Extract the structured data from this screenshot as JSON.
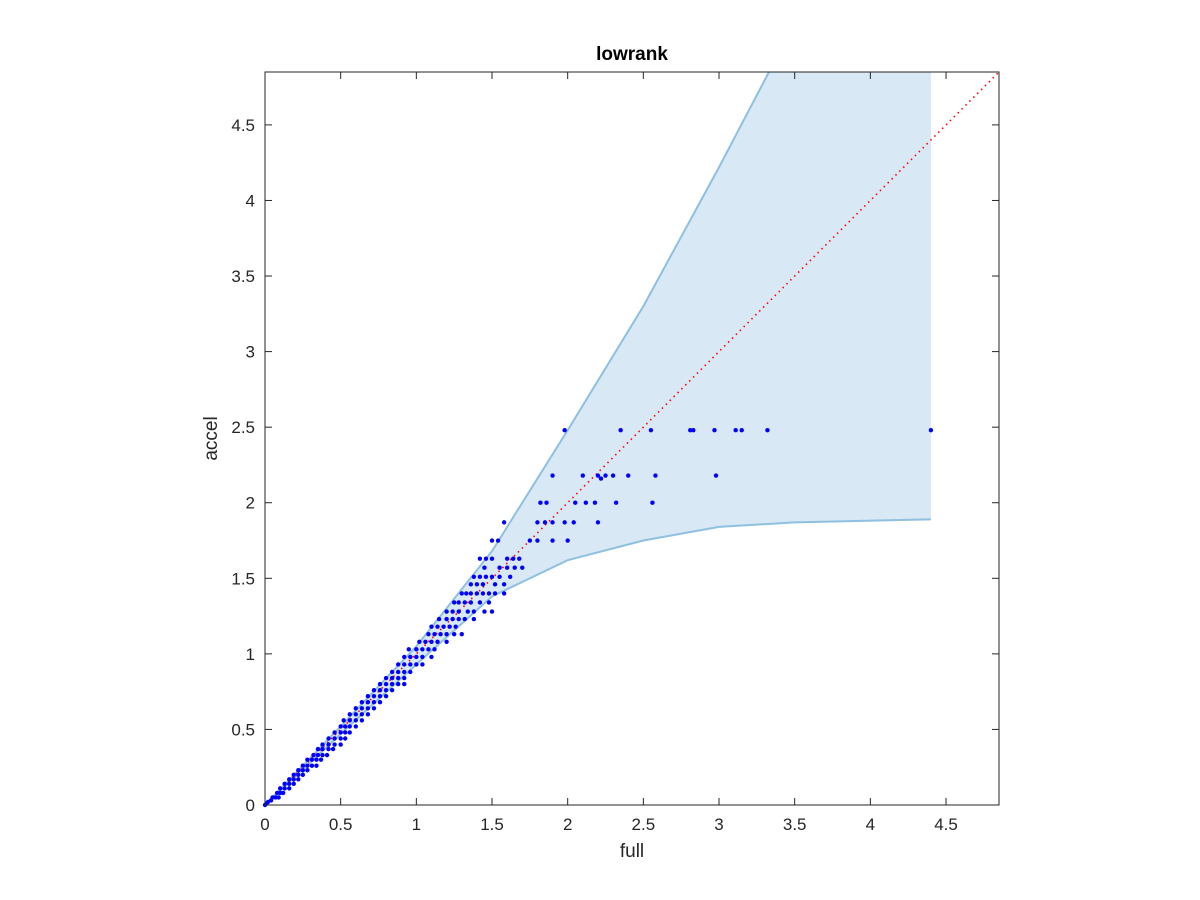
{
  "chart_data": {
    "type": "scatter",
    "title": "lowrank",
    "xlabel": "full",
    "ylabel": "accel",
    "xlim": [
      0,
      4.85
    ],
    "ylim": [
      0,
      4.85
    ],
    "xticks": [
      "0",
      "0.5",
      "1",
      "1.5",
      "2",
      "2.5",
      "3",
      "3.5",
      "4",
      "4.5"
    ],
    "yticks": [
      "0",
      "0.5",
      "1",
      "1.5",
      "2",
      "2.5",
      "3",
      "3.5",
      "4",
      "4.5"
    ],
    "grid": false,
    "legend": "none",
    "reference_line": {
      "style": "dotted",
      "color": "#ff0000",
      "x": [
        0,
        4.85
      ],
      "y": [
        0,
        4.85
      ]
    },
    "band": {
      "color": "#d8e8f4",
      "edge_color": "#8fc0e0",
      "upper": [
        [
          0,
          0
        ],
        [
          0.5,
          0.52
        ],
        [
          1,
          1.05
        ],
        [
          1.5,
          1.68
        ],
        [
          2,
          2.48
        ],
        [
          2.5,
          3.3
        ],
        [
          3,
          4.22
        ],
        [
          3.33,
          4.85
        ]
      ],
      "upper_end_x": 4.4,
      "lower": [
        [
          0,
          0
        ],
        [
          0.5,
          0.47
        ],
        [
          1,
          0.93
        ],
        [
          1.5,
          1.38
        ],
        [
          2,
          1.62
        ],
        [
          2.5,
          1.75
        ],
        [
          3,
          1.84
        ],
        [
          3.5,
          1.87
        ],
        [
          4.4,
          1.89
        ]
      ],
      "x_max": 4.4
    },
    "series": [
      {
        "color": "#0000ff",
        "points": [
          [
            1.98,
            2.48
          ],
          [
            2.35,
            2.48
          ],
          [
            2.55,
            2.48
          ],
          [
            2.81,
            2.48
          ],
          [
            2.83,
            2.48
          ],
          [
            2.97,
            2.48
          ],
          [
            3.11,
            2.48
          ],
          [
            3.15,
            2.48
          ],
          [
            3.32,
            2.48
          ],
          [
            4.4,
            2.48
          ],
          [
            1.9,
            2.18
          ],
          [
            2.1,
            2.18
          ],
          [
            2.2,
            2.18
          ],
          [
            2.25,
            2.18
          ],
          [
            2.3,
            2.18
          ],
          [
            2.4,
            2.18
          ],
          [
            2.58,
            2.18
          ],
          [
            2.98,
            2.18
          ],
          [
            2.22,
            2.16
          ],
          [
            1.82,
            2.0
          ],
          [
            1.86,
            2.0
          ],
          [
            2.05,
            2.0
          ],
          [
            2.12,
            2.0
          ],
          [
            2.18,
            2.0
          ],
          [
            2.32,
            2.0
          ],
          [
            2.56,
            2.0
          ],
          [
            1.8,
            1.87
          ],
          [
            1.85,
            1.87
          ],
          [
            1.9,
            1.87
          ],
          [
            1.98,
            1.87
          ],
          [
            2.04,
            1.87
          ],
          [
            2.2,
            1.87
          ],
          [
            1.58,
            1.87
          ],
          [
            1.75,
            1.75
          ],
          [
            1.8,
            1.75
          ],
          [
            1.9,
            1.75
          ],
          [
            2.0,
            1.75
          ],
          [
            1.5,
            1.75
          ],
          [
            1.54,
            1.75
          ],
          [
            1.6,
            1.63
          ],
          [
            1.64,
            1.63
          ],
          [
            1.68,
            1.63
          ],
          [
            1.42,
            1.63
          ],
          [
            1.46,
            1.63
          ],
          [
            1.5,
            1.63
          ],
          [
            1.55,
            1.57
          ],
          [
            1.6,
            1.57
          ],
          [
            1.65,
            1.57
          ],
          [
            1.7,
            1.57
          ],
          [
            1.45,
            1.57
          ],
          [
            1.38,
            1.51
          ],
          [
            1.42,
            1.51
          ],
          [
            1.46,
            1.51
          ],
          [
            1.5,
            1.51
          ],
          [
            1.55,
            1.51
          ],
          [
            1.62,
            1.51
          ],
          [
            1.36,
            1.46
          ],
          [
            1.4,
            1.46
          ],
          [
            1.44,
            1.46
          ],
          [
            1.52,
            1.46
          ],
          [
            1.58,
            1.46
          ],
          [
            1.3,
            1.4
          ],
          [
            1.33,
            1.4
          ],
          [
            1.36,
            1.4
          ],
          [
            1.4,
            1.4
          ],
          [
            1.44,
            1.4
          ],
          [
            1.48,
            1.4
          ],
          [
            1.52,
            1.4
          ],
          [
            1.58,
            1.4
          ],
          [
            1.25,
            1.34
          ],
          [
            1.28,
            1.34
          ],
          [
            1.32,
            1.34
          ],
          [
            1.36,
            1.34
          ],
          [
            1.42,
            1.34
          ],
          [
            1.48,
            1.34
          ],
          [
            1.2,
            1.28
          ],
          [
            1.24,
            1.28
          ],
          [
            1.28,
            1.28
          ],
          [
            1.34,
            1.28
          ],
          [
            1.38,
            1.28
          ],
          [
            1.45,
            1.28
          ],
          [
            1.5,
            1.28
          ],
          [
            1.15,
            1.23
          ],
          [
            1.2,
            1.23
          ],
          [
            1.24,
            1.23
          ],
          [
            1.28,
            1.23
          ],
          [
            1.32,
            1.23
          ],
          [
            1.38,
            1.23
          ],
          [
            1.1,
            1.18
          ],
          [
            1.14,
            1.18
          ],
          [
            1.18,
            1.18
          ],
          [
            1.22,
            1.18
          ],
          [
            1.26,
            1.18
          ],
          [
            1.08,
            1.13
          ],
          [
            1.12,
            1.13
          ],
          [
            1.16,
            1.13
          ],
          [
            1.2,
            1.13
          ],
          [
            1.25,
            1.13
          ],
          [
            1.3,
            1.13
          ],
          [
            1.02,
            1.08
          ],
          [
            1.06,
            1.08
          ],
          [
            1.1,
            1.08
          ],
          [
            1.14,
            1.08
          ],
          [
            1.2,
            1.08
          ],
          [
            0.95,
            1.03
          ],
          [
            1.0,
            1.03
          ],
          [
            1.04,
            1.03
          ],
          [
            1.08,
            1.03
          ],
          [
            1.12,
            1.03
          ],
          [
            0.92,
            0.98
          ],
          [
            0.96,
            0.98
          ],
          [
            1.0,
            0.98
          ],
          [
            1.04,
            0.98
          ],
          [
            1.1,
            0.98
          ],
          [
            0.88,
            0.93
          ],
          [
            0.92,
            0.93
          ],
          [
            0.96,
            0.93
          ],
          [
            1.0,
            0.93
          ],
          [
            1.04,
            0.93
          ],
          [
            0.84,
            0.88
          ],
          [
            0.88,
            0.88
          ],
          [
            0.92,
            0.88
          ],
          [
            0.96,
            0.88
          ],
          [
            0.8,
            0.84
          ],
          [
            0.84,
            0.84
          ],
          [
            0.88,
            0.84
          ],
          [
            0.92,
            0.84
          ],
          [
            0.76,
            0.8
          ],
          [
            0.8,
            0.8
          ],
          [
            0.84,
            0.8
          ],
          [
            0.88,
            0.8
          ],
          [
            0.92,
            0.8
          ],
          [
            0.72,
            0.76
          ],
          [
            0.76,
            0.76
          ],
          [
            0.8,
            0.76
          ],
          [
            0.84,
            0.76
          ],
          [
            0.68,
            0.72
          ],
          [
            0.72,
            0.72
          ],
          [
            0.76,
            0.72
          ],
          [
            0.8,
            0.72
          ],
          [
            0.64,
            0.68
          ],
          [
            0.68,
            0.68
          ],
          [
            0.72,
            0.68
          ],
          [
            0.76,
            0.68
          ],
          [
            0.6,
            0.64
          ],
          [
            0.64,
            0.64
          ],
          [
            0.68,
            0.64
          ],
          [
            0.72,
            0.64
          ],
          [
            0.56,
            0.6
          ],
          [
            0.6,
            0.6
          ],
          [
            0.64,
            0.6
          ],
          [
            0.68,
            0.6
          ],
          [
            0.52,
            0.56
          ],
          [
            0.56,
            0.56
          ],
          [
            0.6,
            0.56
          ],
          [
            0.64,
            0.56
          ],
          [
            0.5,
            0.52
          ],
          [
            0.53,
            0.52
          ],
          [
            0.56,
            0.52
          ],
          [
            0.6,
            0.52
          ],
          [
            0.46,
            0.48
          ],
          [
            0.5,
            0.48
          ],
          [
            0.53,
            0.48
          ],
          [
            0.56,
            0.48
          ],
          [
            0.42,
            0.44
          ],
          [
            0.46,
            0.44
          ],
          [
            0.5,
            0.44
          ],
          [
            0.53,
            0.44
          ],
          [
            0.38,
            0.4
          ],
          [
            0.42,
            0.4
          ],
          [
            0.46,
            0.4
          ],
          [
            0.5,
            0.4
          ],
          [
            0.35,
            0.37
          ],
          [
            0.38,
            0.37
          ],
          [
            0.42,
            0.37
          ],
          [
            0.45,
            0.37
          ],
          [
            0.32,
            0.33
          ],
          [
            0.35,
            0.33
          ],
          [
            0.38,
            0.33
          ],
          [
            0.41,
            0.33
          ],
          [
            0.28,
            0.3
          ],
          [
            0.31,
            0.3
          ],
          [
            0.34,
            0.3
          ],
          [
            0.37,
            0.3
          ],
          [
            0.25,
            0.26
          ],
          [
            0.28,
            0.26
          ],
          [
            0.31,
            0.26
          ],
          [
            0.34,
            0.26
          ],
          [
            0.22,
            0.23
          ],
          [
            0.25,
            0.23
          ],
          [
            0.28,
            0.23
          ],
          [
            0.19,
            0.2
          ],
          [
            0.22,
            0.2
          ],
          [
            0.25,
            0.2
          ],
          [
            0.16,
            0.17
          ],
          [
            0.19,
            0.17
          ],
          [
            0.22,
            0.17
          ],
          [
            0.13,
            0.14
          ],
          [
            0.16,
            0.14
          ],
          [
            0.19,
            0.14
          ],
          [
            0.1,
            0.11
          ],
          [
            0.13,
            0.11
          ],
          [
            0.16,
            0.11
          ],
          [
            0.08,
            0.08
          ],
          [
            0.1,
            0.08
          ],
          [
            0.12,
            0.08
          ],
          [
            0.05,
            0.05
          ],
          [
            0.07,
            0.05
          ],
          [
            0.09,
            0.05
          ],
          [
            0.02,
            0.02
          ],
          [
            0.04,
            0.03
          ],
          [
            0.01,
            0.01
          ],
          [
            0.0,
            0.0
          ]
        ]
      }
    ]
  }
}
